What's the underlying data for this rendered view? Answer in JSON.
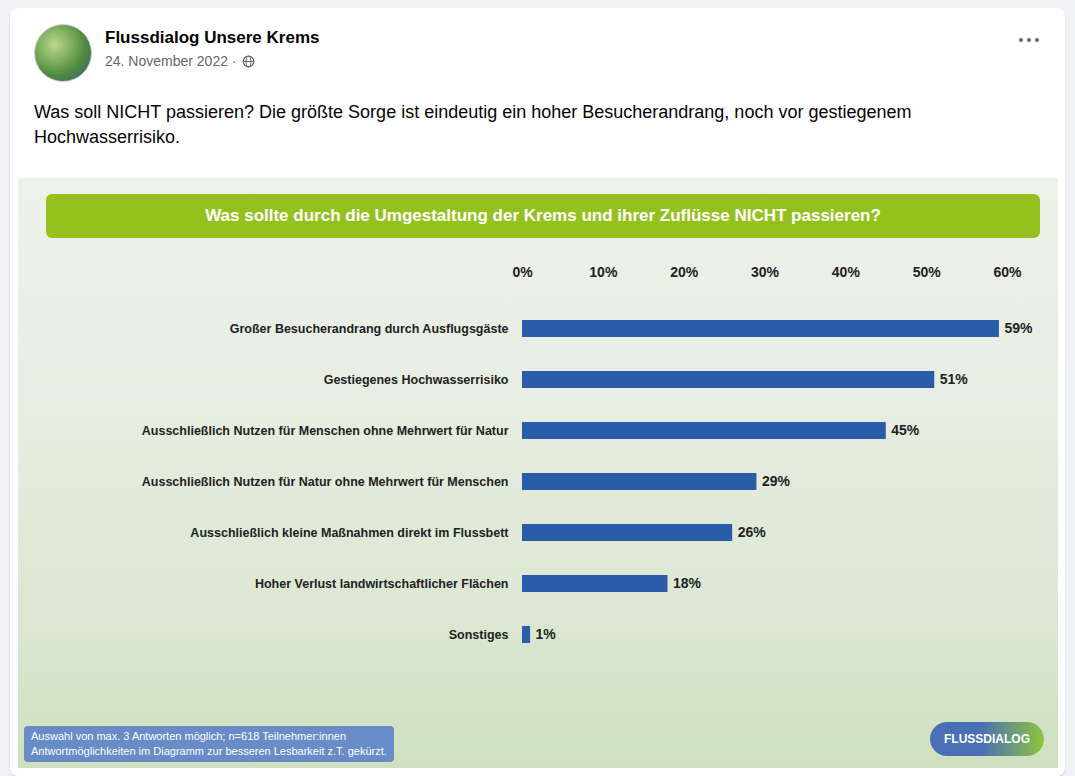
{
  "post": {
    "author": "Flussdialog Unsere Krems",
    "date": "24. November 2022 ·",
    "text": "Was soll NICHT passieren? Die größte Sorge ist eindeutig ein hoher Besucherandrang, noch vor gestiegenem Hochwasserrisiko."
  },
  "chart_data": {
    "type": "bar",
    "orientation": "horizontal",
    "title": "Was sollte durch die Umgestaltung der Krems und ihrer Zuflüsse NICHT passieren?",
    "categories": [
      "Großer Besucherandrang durch Ausflugsgäste",
      "Gestiegenes Hochwasserrisiko",
      "Ausschließlich Nutzen für Menschen ohne Mehrwert für Natur",
      "Ausschließlich Nutzen für Natur ohne Mehrwert für Menschen",
      "Ausschließlich kleine Maßnahmen direkt im Flussbett",
      "Hoher Verlust landwirtschaftlicher Flächen",
      "Sonstiges"
    ],
    "values": [
      59,
      51,
      45,
      29,
      26,
      18,
      1
    ],
    "value_labels": [
      "59%",
      "51%",
      "45%",
      "29%",
      "26%",
      "18%",
      "1%"
    ],
    "data_labels": true,
    "color": "#2a5caa",
    "xlim": [
      0,
      60
    ],
    "xticks": [
      {
        "value": 0,
        "label": "0%"
      },
      {
        "value": 10,
        "label": "10%"
      },
      {
        "value": 20,
        "label": "20%"
      },
      {
        "value": 30,
        "label": "30%"
      },
      {
        "value": 40,
        "label": "40%"
      },
      {
        "value": 50,
        "label": "50%"
      },
      {
        "value": 60,
        "label": "60%"
      }
    ],
    "grid": false,
    "annotations": [
      "Auswahl von max. 3 Antworten möglich; n=618 Teilnehmer:innen",
      "Antwortmöglichkeiten im Diagramm zur besseren Lesbarkeit z.T. gekürzt."
    ],
    "logo": "FLUSSDIALOG"
  }
}
